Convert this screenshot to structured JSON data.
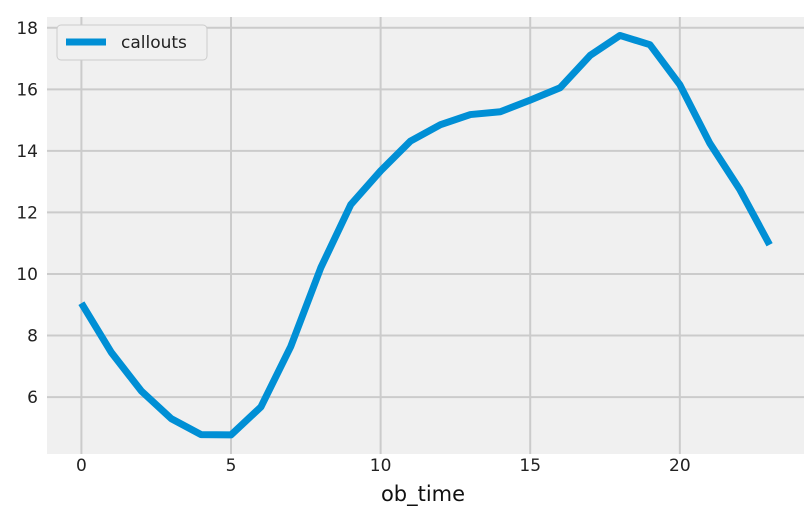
{
  "chart_data": {
    "type": "line",
    "xlabel": "ob_time",
    "ylabel": "",
    "xlim": [
      -1.15,
      24.15
    ],
    "ylim": [
      4.15,
      18.35
    ],
    "xticks": [
      0,
      5,
      10,
      15,
      20
    ],
    "yticks": [
      6,
      8,
      10,
      12,
      14,
      16,
      18
    ],
    "grid": true,
    "legend": {
      "placement": "top-left"
    },
    "series": [
      {
        "name": "callouts",
        "color": "#008fd5",
        "x": [
          0,
          1,
          2,
          3,
          4,
          5,
          6,
          7,
          8,
          9,
          10,
          11,
          12,
          13,
          14,
          15,
          16,
          17,
          18,
          19,
          20,
          21,
          22,
          23
        ],
        "values": [
          9.05,
          7.45,
          6.2,
          5.3,
          4.78,
          4.77,
          5.68,
          7.65,
          10.2,
          12.25,
          13.35,
          14.32,
          14.85,
          15.18,
          15.27,
          15.65,
          16.05,
          17.1,
          17.75,
          17.45,
          16.15,
          14.25,
          12.75,
          10.95
        ]
      }
    ]
  },
  "colors": {
    "plot_background": "#f0f0f0",
    "grid": "#cbcbcb",
    "line": "#008fd5"
  }
}
